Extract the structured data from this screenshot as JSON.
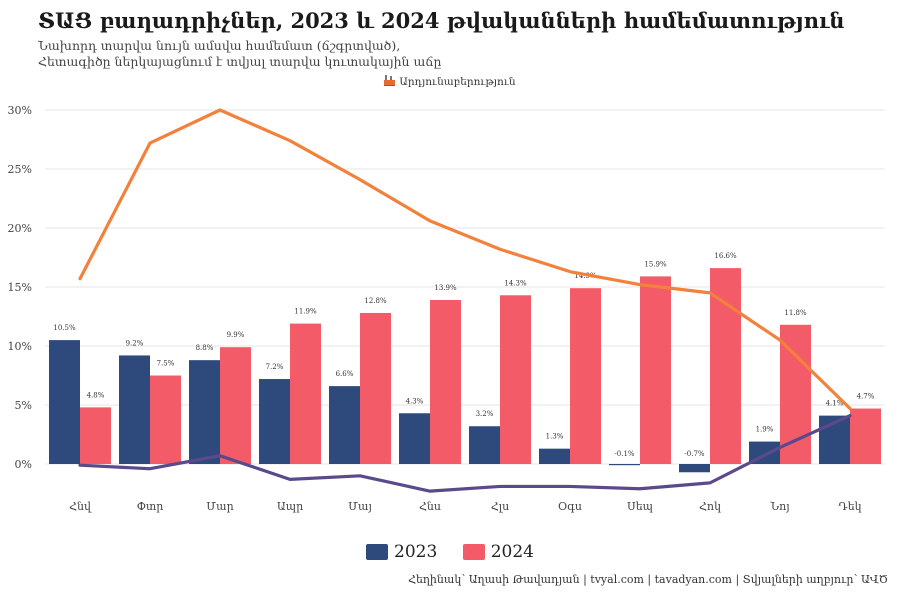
{
  "header": {
    "title": "ՏԱՑ բաղադրիչներ, 2023 և 2024 թվականների համեմատություն",
    "subtitle_line1": "Նախորդ տարվա նույն ամսվա համեմատ (ճշգրտված),",
    "subtitle_line2": "Հետագիծը ներկայացնում է տվյալ տարվա կուտակային աճը"
  },
  "top_legend": {
    "label": "Արդյունաբերություն",
    "icon": "factory-icon"
  },
  "legend": {
    "items": [
      {
        "label": "2023",
        "color": "#2e4a7d"
      },
      {
        "label": "2024",
        "color": "#f45b69"
      }
    ]
  },
  "caption": "Հեղինակ՝ Աղասի Թավադյան   |   tvyal.com   |   tavadyan.com   |   Տվյալների աղբյուր՝ ԱՎԾ",
  "chart_data": {
    "type": "bar",
    "categories": [
      "Հնվ",
      "Փտր",
      "Մար",
      "Ապր",
      "Մայ",
      "Հնս",
      "Հլս",
      "Օգս",
      "Սեպ",
      "Հոկ",
      "Նոյ",
      "Դեկ"
    ],
    "series": [
      {
        "name": "2023",
        "color": "#2e4a7d",
        "values": [
          10.5,
          9.2,
          8.8,
          7.2,
          6.6,
          4.3,
          3.2,
          1.3,
          -0.1,
          -0.7,
          1.9,
          4.1
        ],
        "labels": [
          "10.5%",
          "9.2%",
          "8.8%",
          "7.2%",
          "6.6%",
          "4.3%",
          "3.2%",
          "1.3%",
          "-0.1%",
          "-0.7%",
          "1.9%",
          "4.1%"
        ]
      },
      {
        "name": "2024",
        "color": "#f45b69",
        "values": [
          4.8,
          7.5,
          9.9,
          11.9,
          12.8,
          13.9,
          14.3,
          14.9,
          15.9,
          16.6,
          11.8,
          4.7
        ],
        "labels": [
          "4.8%",
          "7.5%",
          "9.9%",
          "11.9%",
          "12.8%",
          "13.9%",
          "14.3%",
          "14.9%",
          "15.9%",
          "16.6%",
          "11.8%",
          "4.7%"
        ]
      }
    ],
    "lines": [
      {
        "series": "2023",
        "color": "#5b4a8b",
        "values": [
          -0.1,
          -0.4,
          0.7,
          -1.3,
          -1.0,
          -2.3,
          -1.9,
          -1.9,
          -2.1,
          -1.6,
          1.4,
          4.1
        ]
      },
      {
        "series": "2024",
        "color": "#f2813b",
        "values": [
          15.7,
          27.2,
          30.0,
          27.4,
          24.1,
          20.6,
          18.2,
          16.3,
          15.2,
          14.5,
          10.5,
          4.7
        ]
      }
    ],
    "y_ticks": [
      "0%",
      "5%",
      "10%",
      "15%",
      "20%",
      "25%",
      "30%"
    ],
    "y_tick_values": [
      0,
      5,
      10,
      15,
      20,
      25,
      30
    ],
    "ylim": [
      -2.5,
      30
    ],
    "grid": true,
    "legend_position": "bottom"
  }
}
